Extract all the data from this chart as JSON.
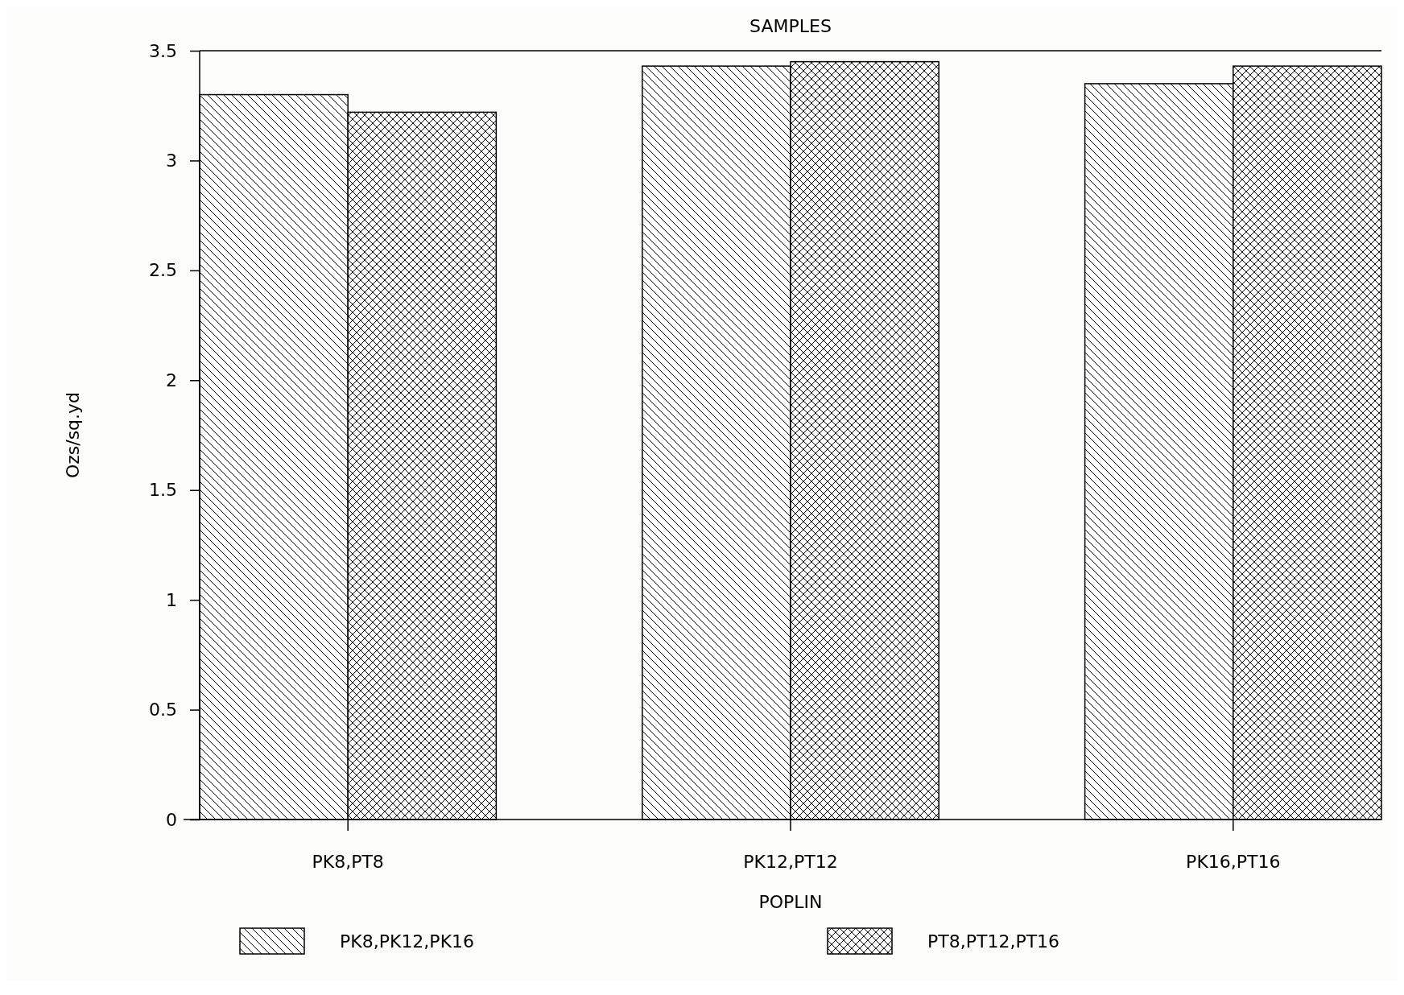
{
  "chart_data": {
    "type": "bar",
    "title": "SAMPLES",
    "xlabel": "POPLIN",
    "ylabel": "Ozs/sq.yd",
    "categories": [
      "PK8,PT8",
      "PK12,PT12",
      "PK16,PT16"
    ],
    "series": [
      {
        "name": "PK8,PK12,PK16",
        "color": "#000000",
        "values": [
          3.3,
          3.43,
          3.35
        ]
      },
      {
        "name": "PT8,PT12,PT16",
        "color": "#000000",
        "values": [
          3.22,
          3.45,
          3.43
        ]
      }
    ],
    "ylim": [
      0,
      3.5
    ],
    "yticks": [
      0,
      0.5,
      1,
      1.5,
      2,
      2.5,
      3,
      3.5
    ],
    "grid": false,
    "legend": "bottom"
  }
}
